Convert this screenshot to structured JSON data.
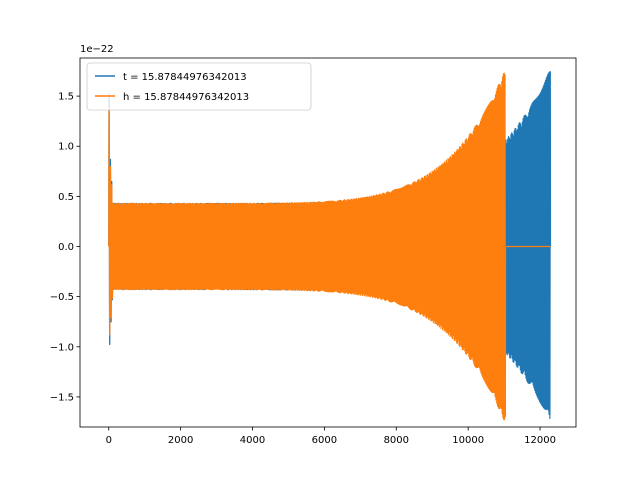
{
  "chart_data": {
    "type": "line",
    "title": "",
    "xlabel": "",
    "ylabel": "",
    "y_offset_label": "1e−22",
    "xlim": [
      -800,
      13000
    ],
    "ylim": [
      -1.8,
      1.88
    ],
    "x_ticks": [
      0,
      2000,
      4000,
      6000,
      8000,
      10000,
      12000
    ],
    "x_tick_labels": [
      "0",
      "2000",
      "4000",
      "6000",
      "8000",
      "10000",
      "12000"
    ],
    "y_ticks": [
      -1.5,
      -1.0,
      -0.5,
      0.0,
      0.5,
      1.0,
      1.5
    ],
    "y_tick_labels": [
      "−1.5",
      "−1.0",
      "−0.5",
      "0.0",
      "0.5",
      "1.0",
      "1.5"
    ],
    "grid": false,
    "legend_position": "top-left",
    "series": [
      {
        "name": "t = 15.87844976342013",
        "color": "#1f77b4",
        "shape": "chirp",
        "x_start": 0,
        "x_end": 12290,
        "base_amplitude": 0.43,
        "peak_amplitude": 1.77,
        "spike_amplitude": 1.15,
        "cycles": 330,
        "tail_start": 12290
      },
      {
        "name": "h = 15.87844976342013",
        "color": "#ff7f0e",
        "shape": "chirp",
        "x_start": 0,
        "x_end": 11040,
        "base_amplitude": 0.43,
        "peak_amplitude": 1.77,
        "spike_amplitude": 1.03,
        "cycles": 300,
        "tail_start": 11040,
        "tail_end": 12290,
        "tail_value": 0.0
      }
    ]
  }
}
